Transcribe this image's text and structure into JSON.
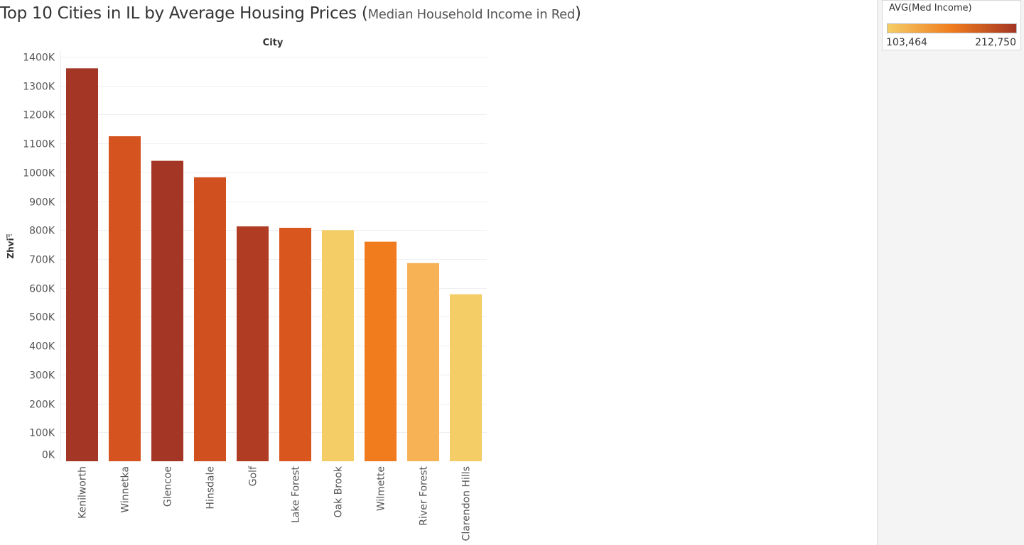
{
  "header": {
    "title_main": "Top 10 Cities in IL by Average Housing Prices ",
    "title_paren_open": "(",
    "title_sub": "Median Household Income in Red",
    "title_paren_close": ")"
  },
  "legend": {
    "title": "AVG(Med Income)",
    "min_label": "103,464",
    "max_label": "212,750",
    "min_value": 103464,
    "max_value": 212750,
    "color_low": "#f4cd66",
    "color_mid": "#f07c1e",
    "color_high": "#a33624"
  },
  "chart_data": {
    "type": "bar",
    "column_header": "City",
    "ylabel": "Zhvi",
    "ylim": [
      0,
      1400000
    ],
    "ytick_step": 100000,
    "ytick_labels": [
      "0K",
      "100K",
      "200K",
      "300K",
      "400K",
      "500K",
      "600K",
      "700K",
      "800K",
      "900K",
      "1000K",
      "1100K",
      "1200K",
      "1300K",
      "1400K"
    ],
    "categories": [
      "Kenilworth",
      "Winnetka",
      "Glencoe",
      "Hinsdale",
      "Golf",
      "Lake Forest",
      "Oak Brook",
      "Wilmette",
      "River Forest",
      "Clarendon Hills"
    ],
    "values": [
      1360000,
      1125000,
      1040000,
      983000,
      813000,
      808000,
      800000,
      760000,
      686000,
      578000
    ],
    "colors": [
      "#a33624",
      "#d5531f",
      "#a33624",
      "#d0501f",
      "#b03c23",
      "#d9561f",
      "#f4cd66",
      "#f07c1e",
      "#f6b255",
      "#f4cd66"
    ],
    "grid": true
  }
}
